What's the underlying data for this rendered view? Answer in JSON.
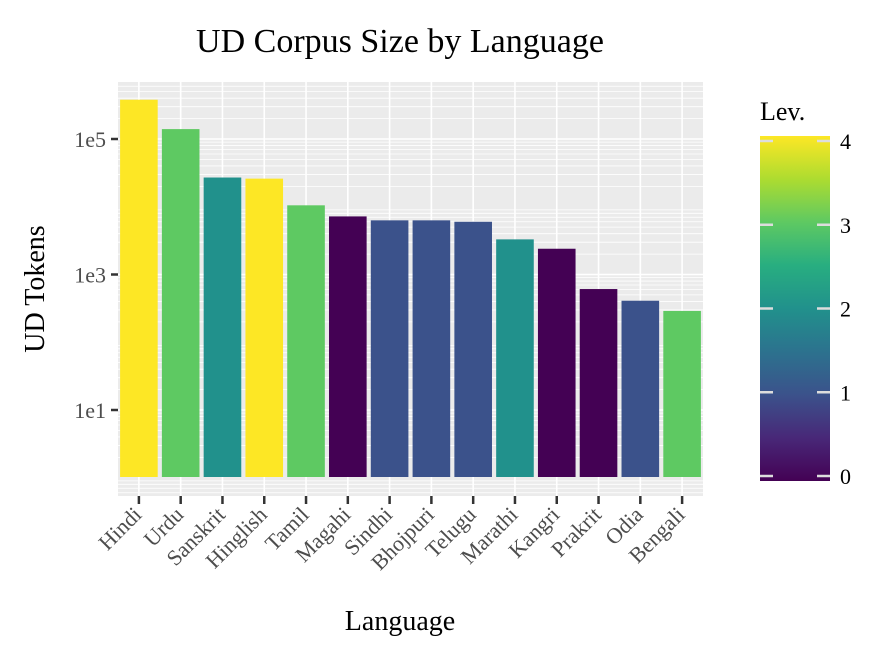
{
  "chart_data": {
    "type": "bar",
    "title": "UD Corpus Size by Language",
    "xlabel": "Language",
    "ylabel": "UD Tokens",
    "yscale": "log10",
    "yticks": [
      {
        "value": 10,
        "label": "1e1"
      },
      {
        "value": 1000,
        "label": "1e3"
      },
      {
        "value": 100000,
        "label": "1e5"
      }
    ],
    "grid": true,
    "categories": [
      "Hindi",
      "Urdu",
      "Sanskrit",
      "Hinglish",
      "Tamil",
      "Magahi",
      "Sindhi",
      "Bhojpuri",
      "Telugu",
      "Marathi",
      "Kangri",
      "Prakrit",
      "Odia",
      "Bengali"
    ],
    "values": [
      380000,
      140000,
      27000,
      26000,
      10500,
      7200,
      6300,
      6300,
      6000,
      3300,
      2400,
      610,
      410,
      290
    ],
    "levels": [
      4,
      3,
      2,
      4,
      3,
      0,
      1,
      1,
      1,
      2,
      0,
      0,
      1,
      3
    ],
    "legend": {
      "title": "Lev.",
      "position": "right",
      "type": "colorbar",
      "ticks": [
        "0",
        "1",
        "2",
        "3",
        "4"
      ],
      "range": [
        0,
        4
      ]
    },
    "colors": {
      "0": "#440154",
      "1": "#3b528b",
      "2": "#21918c",
      "3": "#5ec962",
      "4": "#fde725"
    },
    "panel_background": "#ebebeb",
    "grid_color": "#ffffff"
  }
}
